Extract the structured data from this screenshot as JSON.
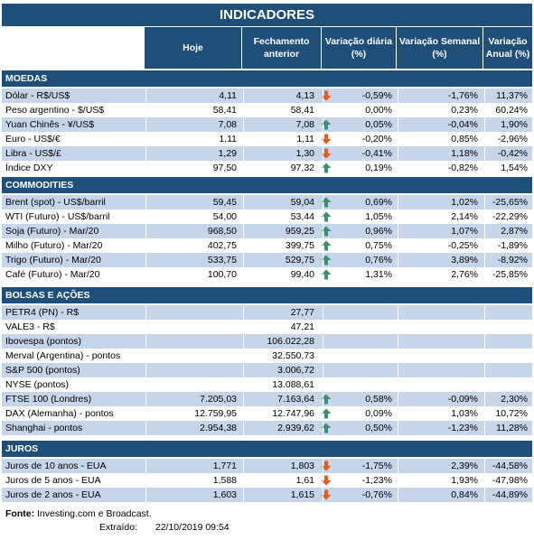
{
  "title": "INDICADORES",
  "columns": {
    "hoje": "Hoje",
    "fechamento": "Fechamento anterior",
    "var_diaria": "Variação diária (%)",
    "var_semanal": "Variação Semanal (%)",
    "var_anual": "Variação Anual (%)"
  },
  "sections": [
    {
      "name": "MOEDAS",
      "rows": [
        {
          "label": "Dólar - R$/US$",
          "hoje": "4,11",
          "fech": "4,13",
          "arrow": "down",
          "dia": "-0,59%",
          "sem": "-1,76%",
          "ano": "11,37%"
        },
        {
          "label": "Peso argentino - $/US$",
          "hoje": "58,41",
          "fech": "58,41",
          "arrow": "",
          "dia": "0,00%",
          "sem": "0,23%",
          "ano": "60,24%"
        },
        {
          "label": "Yuan Chinês - ¥/US$",
          "hoje": "7,08",
          "fech": "7,08",
          "arrow": "up",
          "dia": "0,05%",
          "sem": "-0,04%",
          "ano": "1,90%"
        },
        {
          "label": "Euro - US$/€",
          "hoje": "1,11",
          "fech": "1,11",
          "arrow": "down",
          "dia": "-0,20%",
          "sem": "0,85%",
          "ano": "-2,96%"
        },
        {
          "label": "Libra - US$/£",
          "hoje": "1,29",
          "fech": "1,30",
          "arrow": "down",
          "dia": "-0,41%",
          "sem": "1,18%",
          "ano": "-0,42%"
        },
        {
          "label": "Índice DXY",
          "hoje": "97,50",
          "fech": "97,32",
          "arrow": "up",
          "dia": "0,19%",
          "sem": "-0,82%",
          "ano": "1,54%"
        }
      ]
    },
    {
      "name": "COMMODITIES",
      "rows": [
        {
          "label": "Brent (spot) - US$/barril",
          "hoje": "59,45",
          "fech": "59,04",
          "arrow": "up",
          "dia": "0,69%",
          "sem": "1,02%",
          "ano": "-25,65%"
        },
        {
          "label": "WTI (Futuro) - US$/barril",
          "hoje": "54,00",
          "fech": "53,44",
          "arrow": "up",
          "dia": "1,05%",
          "sem": "2,14%",
          "ano": "-22,29%"
        },
        {
          "label": "Soja (Futuro) - Mar/20",
          "hoje": "968,50",
          "fech": "959,25",
          "arrow": "up",
          "dia": "0,96%",
          "sem": "1,07%",
          "ano": "2,87%"
        },
        {
          "label": "Milho (Futuro) - Mar/20",
          "hoje": "402,75",
          "fech": "399,75",
          "arrow": "up",
          "dia": "0,75%",
          "sem": "-0,25%",
          "ano": "-1,89%"
        },
        {
          "label": "Trigo (Futuro) - Mar/20",
          "hoje": "533,75",
          "fech": "529,75",
          "arrow": "up",
          "dia": "0,76%",
          "sem": "3,89%",
          "ano": "-8,92%"
        },
        {
          "label": "Café (Futuro) - Mar/20",
          "hoje": "100,70",
          "fech": "99,40",
          "arrow": "up",
          "dia": "1,31%",
          "sem": "2,76%",
          "ano": "-25,85%"
        }
      ]
    },
    {
      "name": "BOLSAS E AÇÕES",
      "rows": [
        {
          "label": "PETR4 (PN) - R$",
          "hoje": "",
          "fech": "27,77",
          "arrow": "",
          "dia": "",
          "sem": "",
          "ano": ""
        },
        {
          "label": "VALE3 - R$",
          "hoje": "",
          "fech": "47,21",
          "arrow": "",
          "dia": "",
          "sem": "",
          "ano": ""
        },
        {
          "label": "Ibovespa (pontos)",
          "hoje": "",
          "fech": "106.022,28",
          "arrow": "",
          "dia": "",
          "sem": "",
          "ano": ""
        },
        {
          "label": "Merval (Argentina) - pontos",
          "hoje": "",
          "fech": "32.550,73",
          "arrow": "",
          "dia": "",
          "sem": "",
          "ano": ""
        },
        {
          "label": "S&P 500 (pontos)",
          "hoje": "",
          "fech": "3.006,72",
          "arrow": "",
          "dia": "",
          "sem": "",
          "ano": ""
        },
        {
          "label": "NYSE (pontos)",
          "hoje": "",
          "fech": "13.088,61",
          "arrow": "",
          "dia": "",
          "sem": "",
          "ano": ""
        },
        {
          "label": "FTSE 100 (Londres)",
          "hoje": "7.205,03",
          "fech": "7.163,64",
          "arrow": "up",
          "dia": "0,58%",
          "sem": "-0,09%",
          "ano": "2,30%"
        },
        {
          "label": "DAX (Alemanha) - pontos",
          "hoje": "12.759,95",
          "fech": "12.747,96",
          "arrow": "up",
          "dia": "0,09%",
          "sem": "1,03%",
          "ano": "10,72%"
        },
        {
          "label": "Shanghai - pontos",
          "hoje": "2.954,38",
          "fech": "2.939,62",
          "arrow": "up",
          "dia": "0,50%",
          "sem": "-1,23%",
          "ano": "11,28%"
        }
      ]
    },
    {
      "name": "JUROS",
      "rows": [
        {
          "label": "Juros de 10 anos - EUA",
          "hoje": "1,771",
          "fech": "1,803",
          "arrow": "down",
          "dia": "-1,75%",
          "sem": "2,39%",
          "ano": "-44,58%"
        },
        {
          "label": "Juros de 5 anos - EUA",
          "hoje": "1,588",
          "fech": "1,61",
          "arrow": "down",
          "dia": "-1,23%",
          "sem": "1,93%",
          "ano": "-47,98%"
        },
        {
          "label": "Juros de 2 anos - EUA",
          "hoje": "1,603",
          "fech": "1,615",
          "arrow": "down",
          "dia": "-0,76%",
          "sem": "0,84%",
          "ano": "-44,89%"
        }
      ]
    }
  ],
  "footer": {
    "fonte_label": "Fonte:",
    "fonte_text": "Investing.com e Broadcast.",
    "extraido_label": "Extraído:",
    "extraido_value": "22/10/2019 09:54"
  },
  "colors": {
    "header_bg": "#1f4e79",
    "band_light": "#c5d5ea",
    "arrow_up": "#3f8e74",
    "arrow_down": "#e85a1a"
  }
}
